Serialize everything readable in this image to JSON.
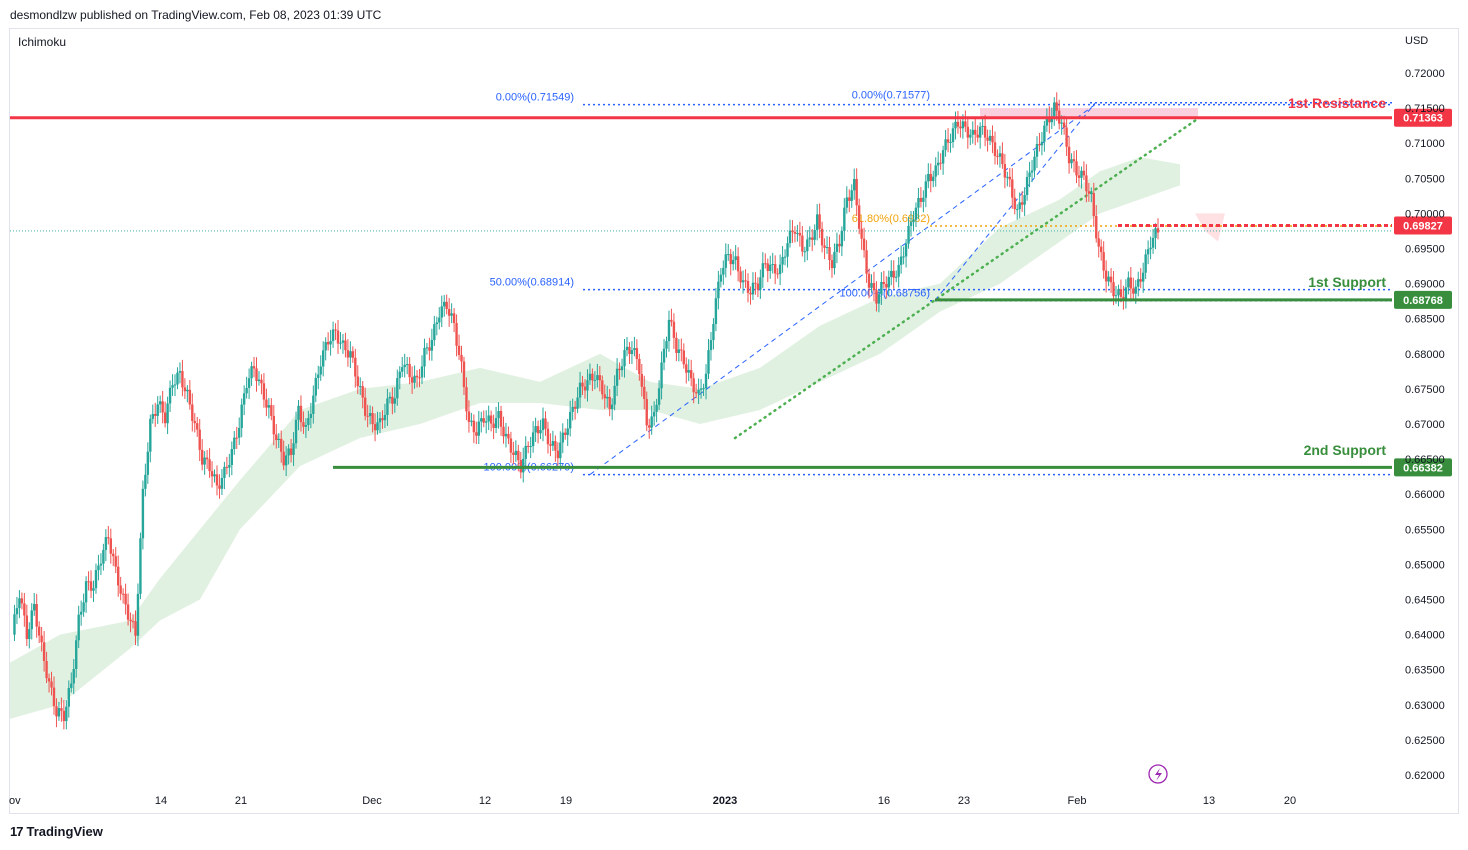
{
  "header": {
    "published": "desmondlzw published on TradingView.com, Feb 08, 2023 01:39 UTC"
  },
  "indicator": "Ichimoku",
  "footer": {
    "brand": "TradingView",
    "brand_mark": "17"
  },
  "colors": {
    "bull": "#26a69a",
    "bear": "#ef5350",
    "resistance": "#f23645",
    "support": "#388e3c",
    "fib": "#2962ff",
    "fib_mid": "#f0a30a",
    "cloud_green": "#c8e6c9",
    "cloud_red": "#ffcdd2",
    "trend": "#4caf50"
  },
  "chart_data": {
    "type": "candlestick",
    "currency": "USD",
    "x_ticks": [
      "ov",
      "14",
      "21",
      "Dec",
      "12",
      "19",
      "2023",
      "16",
      "23",
      "Feb",
      "13",
      "20"
    ],
    "y_ticks": [
      "0.72000",
      "0.71500",
      "0.71000",
      "0.70500",
      "0.70000",
      "0.69500",
      "0.69000",
      "0.68500",
      "0.68000",
      "0.67500",
      "0.67000",
      "0.66500",
      "0.66000",
      "0.65500",
      "0.65000",
      "0.64500",
      "0.64000",
      "0.63500",
      "0.63000",
      "0.62500",
      "0.62000"
    ],
    "ylim": [
      0.6186,
      0.7233
    ],
    "price_path": [
      [
        0,
        0.64
      ],
      [
        3,
        0.646
      ],
      [
        6,
        0.64
      ],
      [
        9,
        0.644
      ],
      [
        12,
        0.638
      ],
      [
        15,
        0.633
      ],
      [
        18,
        0.629
      ],
      [
        21,
        0.6285
      ],
      [
        24,
        0.633
      ],
      [
        27,
        0.642
      ],
      [
        30,
        0.647
      ],
      [
        33,
        0.647
      ],
      [
        36,
        0.651
      ],
      [
        39,
        0.654
      ],
      [
        42,
        0.649
      ],
      [
        45,
        0.645
      ],
      [
        48,
        0.642
      ],
      [
        50,
        0.64
      ],
      [
        53,
        0.66
      ],
      [
        56,
        0.67
      ],
      [
        59,
        0.673
      ],
      [
        62,
        0.671
      ],
      [
        65,
        0.676
      ],
      [
        68,
        0.677
      ],
      [
        71,
        0.674
      ],
      [
        74,
        0.67
      ],
      [
        77,
        0.665
      ],
      [
        80,
        0.664
      ],
      [
        83,
        0.661
      ],
      [
        86,
        0.663
      ],
      [
        89,
        0.666
      ],
      [
        92,
        0.67
      ],
      [
        95,
        0.676
      ],
      [
        98,
        0.678
      ],
      [
        101,
        0.675
      ],
      [
        104,
        0.672
      ],
      [
        107,
        0.668
      ],
      [
        110,
        0.665
      ],
      [
        113,
        0.666
      ],
      [
        116,
        0.672
      ],
      [
        119,
        0.669
      ],
      [
        122,
        0.674
      ],
      [
        125,
        0.679
      ],
      [
        128,
        0.682
      ],
      [
        131,
        0.683
      ],
      [
        134,
        0.681
      ],
      [
        137,
        0.68
      ],
      [
        140,
        0.676
      ],
      [
        143,
        0.672
      ],
      [
        146,
        0.67
      ],
      [
        149,
        0.67
      ],
      [
        152,
        0.673
      ],
      [
        155,
        0.674
      ],
      [
        158,
        0.679
      ],
      [
        161,
        0.677
      ],
      [
        164,
        0.676
      ],
      [
        167,
        0.68
      ],
      [
        170,
        0.682
      ],
      [
        173,
        0.686
      ],
      [
        176,
        0.687
      ],
      [
        179,
        0.684
      ],
      [
        182,
        0.678
      ],
      [
        185,
        0.67
      ],
      [
        188,
        0.669
      ],
      [
        191,
        0.671
      ],
      [
        194,
        0.67
      ],
      [
        197,
        0.671
      ],
      [
        200,
        0.668
      ],
      [
        203,
        0.666
      ],
      [
        206,
        0.664
      ],
      [
        209,
        0.667
      ],
      [
        212,
        0.669
      ],
      [
        215,
        0.67
      ],
      [
        218,
        0.667
      ],
      [
        221,
        0.666
      ],
      [
        224,
        0.669
      ],
      [
        227,
        0.672
      ],
      [
        230,
        0.675
      ],
      [
        233,
        0.676
      ],
      [
        236,
        0.677
      ],
      [
        239,
        0.675
      ],
      [
        242,
        0.672
      ],
      [
        245,
        0.677
      ],
      [
        248,
        0.68
      ],
      [
        251,
        0.681
      ],
      [
        254,
        0.678
      ],
      [
        257,
        0.67
      ],
      [
        260,
        0.671
      ],
      [
        263,
        0.678
      ],
      [
        266,
        0.685
      ],
      [
        269,
        0.681
      ],
      [
        272,
        0.679
      ],
      [
        275,
        0.676
      ],
      [
        278,
        0.674
      ],
      [
        281,
        0.677
      ],
      [
        284,
        0.685
      ],
      [
        287,
        0.692
      ],
      [
        290,
        0.694
      ],
      [
        293,
        0.693
      ],
      [
        296,
        0.69
      ],
      [
        299,
        0.689
      ],
      [
        302,
        0.69
      ],
      [
        305,
        0.693
      ],
      [
        308,
        0.692
      ],
      [
        311,
        0.692
      ],
      [
        314,
        0.696
      ],
      [
        317,
        0.698
      ],
      [
        320,
        0.695
      ],
      [
        323,
        0.696
      ],
      [
        326,
        0.699
      ],
      [
        329,
        0.695
      ],
      [
        332,
        0.693
      ],
      [
        335,
        0.696
      ],
      [
        338,
        0.702
      ],
      [
        341,
        0.704
      ],
      [
        344,
        0.696
      ],
      [
        347,
        0.69
      ],
      [
        350,
        0.688
      ],
      [
        353,
        0.69
      ],
      [
        356,
        0.691
      ],
      [
        359,
        0.692
      ],
      [
        362,
        0.696
      ],
      [
        365,
        0.7
      ],
      [
        368,
        0.702
      ],
      [
        371,
        0.705
      ],
      [
        374,
        0.706
      ],
      [
        377,
        0.709
      ],
      [
        380,
        0.711
      ],
      [
        383,
        0.713
      ],
      [
        386,
        0.712
      ],
      [
        389,
        0.711
      ],
      [
        392,
        0.712
      ],
      [
        395,
        0.711
      ],
      [
        398,
        0.709
      ],
      [
        401,
        0.707
      ],
      [
        404,
        0.704
      ],
      [
        407,
        0.7
      ],
      [
        410,
        0.703
      ],
      [
        413,
        0.707
      ],
      [
        416,
        0.71
      ],
      [
        419,
        0.713
      ],
      [
        422,
        0.715
      ],
      [
        425,
        0.713
      ],
      [
        428,
        0.708
      ],
      [
        431,
        0.706
      ],
      [
        434,
        0.705
      ],
      [
        437,
        0.702
      ],
      [
        440,
        0.695
      ],
      [
        443,
        0.691
      ],
      [
        446,
        0.689
      ],
      [
        449,
        0.688
      ],
      [
        452,
        0.69
      ],
      [
        455,
        0.689
      ],
      [
        458,
        0.692
      ],
      [
        461,
        0.696
      ],
      [
        464,
        0.6975
      ]
    ],
    "levels": [
      {
        "name": "1st Resistance",
        "value": "0.71363",
        "price": 0.71363,
        "color": "#f23645"
      },
      {
        "name": "",
        "value": "0.69827",
        "price": 0.69827,
        "color": "#f23645",
        "dashed": true
      },
      {
        "name": "1st Support",
        "value": "0.68768",
        "price": 0.68768,
        "color": "#388e3c"
      },
      {
        "name": "2nd Support",
        "value": "0.66382",
        "price": 0.66382,
        "color": "#388e3c"
      }
    ],
    "fib_labels": [
      {
        "text": "0.00%(0.71549)",
        "price": 0.71549
      },
      {
        "text": "0.00%(0.71577)",
        "price": 0.71577
      },
      {
        "text": "61.80%(0.6982)",
        "price": 0.6982
      },
      {
        "text": "50.00%(0.68914)",
        "price": 0.68914
      },
      {
        "text": "100.00%(0.68756)",
        "price": 0.68756
      },
      {
        "text": "100.00%(0.66279)",
        "price": 0.66279
      }
    ]
  }
}
